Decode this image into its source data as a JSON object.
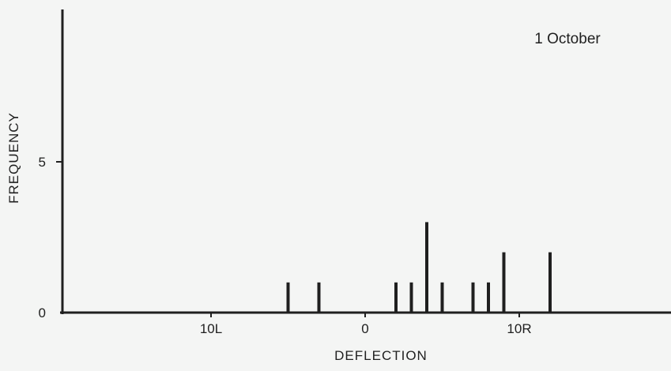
{
  "chart_data": {
    "type": "bar",
    "annotation": "1 October",
    "xlabel": "DEFLECTION",
    "ylabel": "FREQUENCY",
    "xlim": [
      -20,
      20
    ],
    "ylim": [
      0,
      10
    ],
    "x_ticks": [
      {
        "value": -10,
        "label": "10L"
      },
      {
        "value": 0,
        "label": "0"
      },
      {
        "value": 10,
        "label": "10R"
      }
    ],
    "y_ticks": [
      {
        "value": 0,
        "label": "0"
      },
      {
        "value": 5,
        "label": "5"
      }
    ],
    "x": [
      -5,
      -3,
      2,
      3,
      4,
      5,
      7,
      8,
      9,
      12
    ],
    "values": [
      1,
      1,
      1,
      1,
      3,
      1,
      1,
      1,
      2,
      2
    ],
    "grid": false,
    "colors": {
      "bar": "#1f1f1f",
      "axis": "#1f1f1f",
      "background": "#f4f5f4"
    }
  }
}
